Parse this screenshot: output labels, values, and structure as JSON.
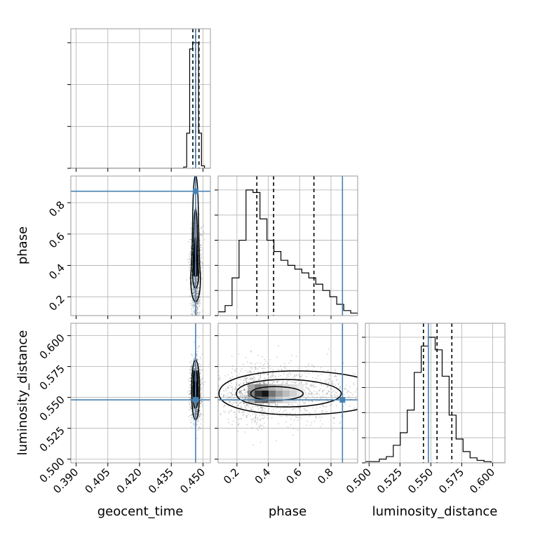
{
  "chart_data": {
    "type": "corner",
    "parameters": [
      "geocent_time",
      "phase",
      "luminosity_distance"
    ],
    "truths": {
      "geocent_time": 0.4465,
      "phase": 0.873,
      "luminosity_distance": 0.548
    },
    "ranges": {
      "geocent_time": [
        0.3875,
        0.4535
      ],
      "phase": [
        0.08,
        0.97
      ],
      "luminosity_distance": [
        0.497,
        0.61
      ]
    },
    "ticks": {
      "geocent_time": {
        "values": [
          0.39,
          0.405,
          0.42,
          0.435,
          0.45
        ],
        "labels": [
          "0.390",
          "0.405",
          "0.420",
          "0.435",
          "0.450"
        ]
      },
      "phase": {
        "values": [
          0.2,
          0.4,
          0.6,
          0.8
        ],
        "labels": [
          "0.2",
          "0.4",
          "0.6",
          "0.8"
        ]
      },
      "luminosity_distance": {
        "values": [
          0.5,
          0.525,
          0.55,
          0.575,
          0.6
        ],
        "labels": [
          "0.500",
          "0.525",
          "0.550",
          "0.575",
          "0.600"
        ]
      }
    },
    "marginals": {
      "geocent_time": {
        "bins": [
          0.4409,
          0.4423,
          0.4437,
          0.4451,
          0.4465,
          0.4479,
          0.4493,
          0.4507,
          0.4521,
          0.4535
        ],
        "counts": [
          0.01,
          0.28,
          0.95,
          1.0,
          1.0,
          0.28,
          0.02,
          0.0,
          0.0
        ],
        "quantiles": [
          0.4452,
          0.4465,
          0.4481
        ]
      },
      "phase": {
        "bins": [
          0.08,
          0.1245,
          0.169,
          0.2135,
          0.258,
          0.3025,
          0.347,
          0.3915,
          0.436,
          0.4805,
          0.525,
          0.5695,
          0.614,
          0.6585,
          0.703,
          0.7475,
          0.792,
          0.8365,
          0.881,
          0.9255,
          0.97
        ],
        "counts": [
          0.03,
          0.08,
          0.3,
          0.6,
          1.0,
          0.98,
          0.77,
          0.6,
          0.51,
          0.44,
          0.4,
          0.37,
          0.34,
          0.3,
          0.25,
          0.2,
          0.15,
          0.09,
          0.04,
          0.02
        ],
        "quantiles": [
          0.327,
          0.434,
          0.691
        ]
      },
      "luminosity_distance": {
        "bins": [
          0.497,
          0.50265,
          0.5083,
          0.51395,
          0.5196,
          0.52525,
          0.5309,
          0.53655,
          0.5422,
          0.54785,
          0.5535,
          0.55915,
          0.5648,
          0.57045,
          0.5761,
          0.58175,
          0.5874,
          0.59305,
          0.5987,
          0.60435,
          0.61
        ],
        "counts": [
          0.01,
          0.01,
          0.03,
          0.05,
          0.14,
          0.24,
          0.42,
          0.72,
          0.93,
          1.0,
          0.9,
          0.69,
          0.38,
          0.19,
          0.09,
          0.04,
          0.02,
          0.01,
          0.0,
          0.0
        ],
        "quantiles": [
          0.544,
          0.555,
          0.567
        ]
      }
    },
    "joint": {
      "geocent_time_phase": {
        "peak": [
          0.4465,
          0.4
        ],
        "spread": [
          0.0012,
          0.15
        ]
      },
      "geocent_time_luminosity_distance": {
        "peak": [
          0.4465,
          0.556
        ],
        "spread": [
          0.0012,
          0.012
        ]
      },
      "phase_luminosity_distance": {
        "peak": [
          0.38,
          0.553
        ],
        "spread": [
          0.2,
          0.012
        ]
      }
    }
  },
  "axis_labels": {
    "x1": "geocent_time",
    "x2": "phase",
    "x3": "luminosity_distance",
    "y_phase": "phase",
    "y_luminosity_distance": "luminosity_distance"
  },
  "colors": {
    "truth": "#4682b4",
    "grid": "#b0b0b0",
    "frame": "#999999",
    "ink": "#000000"
  }
}
